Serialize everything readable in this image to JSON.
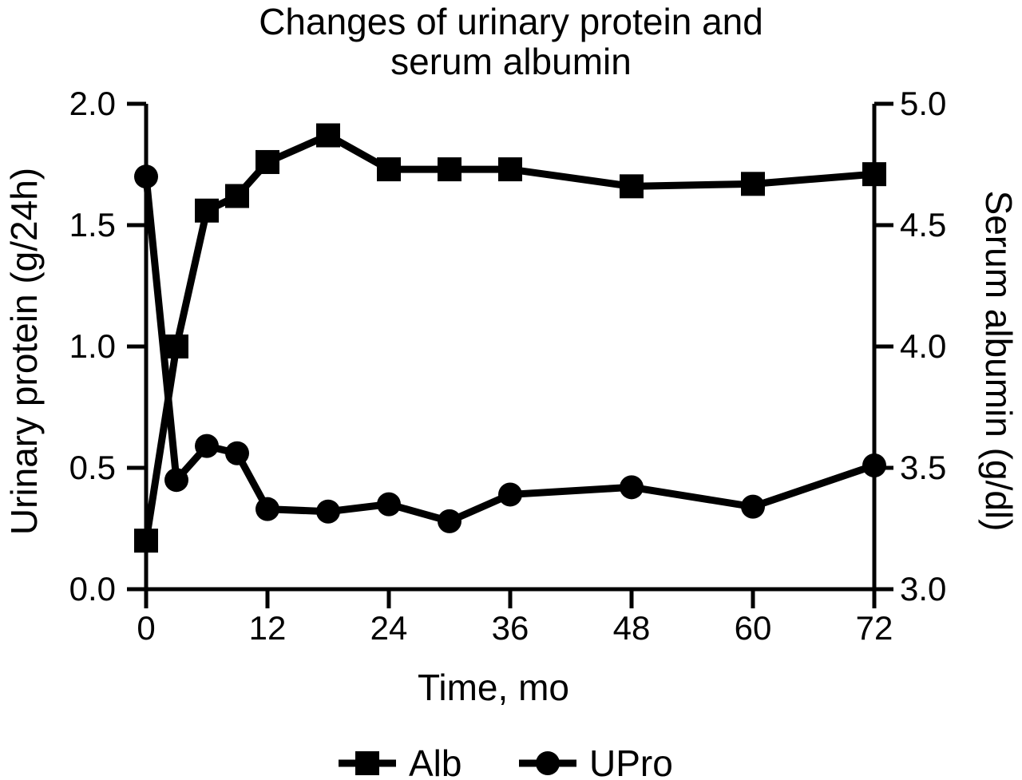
{
  "figure": {
    "background_color": "#ffffff",
    "foreground_color": "#000000"
  },
  "chart_data": {
    "type": "line",
    "title": "Changes of urinary protein and serum albumin",
    "title_lines": [
      "Changes of urinary protein and",
      "serum albumin"
    ],
    "x": [
      0,
      3,
      6,
      9,
      12,
      18,
      24,
      30,
      36,
      48,
      60,
      72
    ],
    "series": [
      {
        "name": "Alb",
        "axis": "right",
        "marker": "square",
        "units": "g/dl",
        "values": [
          3.2,
          4.0,
          4.56,
          4.62,
          4.76,
          4.87,
          4.73,
          4.73,
          4.73,
          4.66,
          4.67,
          4.71
        ]
      },
      {
        "name": "UPro",
        "axis": "left",
        "marker": "circle",
        "units": "g/24h",
        "values": [
          1.7,
          0.45,
          0.59,
          0.56,
          0.33,
          0.32,
          0.35,
          0.28,
          0.39,
          0.42,
          0.34,
          0.51
        ]
      }
    ],
    "x_axis": {
      "label": "Time, mo",
      "ticks": [
        0,
        12,
        24,
        36,
        48,
        60,
        72
      ],
      "range": [
        0,
        72
      ]
    },
    "left_axis": {
      "label": "Urinary protein (g/24h)",
      "ticks": [
        "0.0",
        "0.5",
        "1.0",
        "1.5",
        "2.0"
      ],
      "range": [
        0,
        2
      ]
    },
    "right_axis": {
      "label": "Serum albumin (g/dl)",
      "ticks": [
        "3.0",
        "3.5",
        "4.0",
        "4.5",
        "5.0"
      ],
      "range": [
        3,
        5
      ]
    },
    "grid": false,
    "legend_position": "bottom",
    "legend": [
      {
        "label": "Alb",
        "marker": "square"
      },
      {
        "label": "UPro",
        "marker": "circle"
      }
    ],
    "colors": {
      "line": "#000000",
      "marker": "#000000",
      "background": "#ffffff"
    }
  }
}
